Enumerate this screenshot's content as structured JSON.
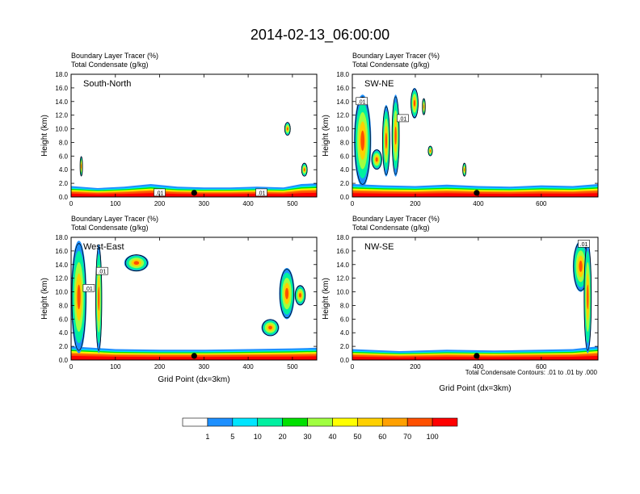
{
  "chart_data": {
    "type": "heatmap",
    "title": "2014-02-13_06:00:00",
    "fields": [
      "Boundary Layer Tracer   (%)",
      "Total Condensate   (g/kg)"
    ],
    "ylabel": "Height (km)",
    "xlabel": "Grid Point (dx=3km)",
    "ylim": [
      0,
      18
    ],
    "yticks": [
      "0.0",
      "2.0",
      "4.0",
      "6.0",
      "8.0",
      "10.0",
      "12.0",
      "14.0",
      "16.0",
      "18.0"
    ],
    "contour_note": "Total Condensate Contours: .01 to .01 by .000",
    "colorbar": {
      "levels": [
        "1",
        "5",
        "10",
        "20",
        "30",
        "40",
        "50",
        "60",
        "70",
        "100"
      ],
      "colors": [
        "#ffffff",
        "#1e90ff",
        "#00e5ff",
        "#00f0a0",
        "#00e000",
        "#a0ff40",
        "#ffff00",
        "#ffd000",
        "#ffa000",
        "#ff5000",
        "#ff0000"
      ]
    },
    "panels": [
      {
        "name": "South-North",
        "xlim": [
          0,
          555
        ],
        "xticks": [
          0,
          100,
          200,
          300,
          400,
          500
        ],
        "marker_x": 278,
        "contour_labels": [
          {
            "text": ".01",
            "x": 200,
            "y": 0.6
          },
          {
            "text": ".01",
            "x": 430,
            "y": 0.6
          }
        ],
        "bl_top": [
          [
            0,
            1.6
          ],
          [
            60,
            1.3
          ],
          [
            120,
            1.5
          ],
          [
            180,
            1.9
          ],
          [
            240,
            1.5
          ],
          [
            300,
            1.4
          ],
          [
            360,
            1.4
          ],
          [
            420,
            1.5
          ],
          [
            480,
            1.4
          ],
          [
            520,
            1.9
          ],
          [
            555,
            2.0
          ]
        ],
        "plumes": [
          {
            "x0": 482,
            "x1": 496,
            "y0": 9,
            "y1": 11
          },
          {
            "x0": 20,
            "x1": 26,
            "y0": 3,
            "y1": 6
          },
          {
            "x0": 520,
            "x1": 534,
            "y0": 3,
            "y1": 5
          }
        ]
      },
      {
        "name": "SW-NE",
        "xlim": [
          0,
          780
        ],
        "xticks": [
          0,
          200,
          400,
          600
        ],
        "marker_x": 395,
        "contour_labels": [
          {
            "text": ".01",
            "x": 30,
            "y": 14
          },
          {
            "text": ".01",
            "x": 160,
            "y": 11.5
          }
        ],
        "bl_top": [
          [
            0,
            1.9
          ],
          [
            100,
            1.7
          ],
          [
            200,
            1.6
          ],
          [
            300,
            1.8
          ],
          [
            400,
            1.6
          ],
          [
            500,
            1.5
          ],
          [
            600,
            1.7
          ],
          [
            700,
            1.6
          ],
          [
            780,
            1.9
          ]
        ],
        "plumes": [
          {
            "x0": 5,
            "x1": 60,
            "y0": 1.5,
            "y1": 15
          },
          {
            "x0": 95,
            "x1": 120,
            "y0": 3,
            "y1": 13.5
          },
          {
            "x0": 125,
            "x1": 150,
            "y0": 3,
            "y1": 15
          },
          {
            "x0": 185,
            "x1": 210,
            "y0": 11.5,
            "y1": 16
          },
          {
            "x0": 60,
            "x1": 95,
            "y0": 4,
            "y1": 7
          },
          {
            "x0": 222,
            "x1": 232,
            "y0": 12,
            "y1": 14.5
          },
          {
            "x0": 240,
            "x1": 255,
            "y0": 6,
            "y1": 7.5
          },
          {
            "x0": 350,
            "x1": 362,
            "y0": 3,
            "y1": 5
          }
        ]
      },
      {
        "name": "West-East",
        "xlim": [
          0,
          555
        ],
        "xticks": [
          0,
          100,
          200,
          300,
          400,
          500
        ],
        "marker_x": 278,
        "contour_labels": [
          {
            "text": ".01",
            "x": 70,
            "y": 13
          },
          {
            "text": ".01",
            "x": 40,
            "y": 10.5
          }
        ],
        "bl_top": [
          [
            0,
            2.0
          ],
          [
            100,
            1.6
          ],
          [
            200,
            1.5
          ],
          [
            300,
            1.5
          ],
          [
            400,
            1.6
          ],
          [
            500,
            1.7
          ],
          [
            555,
            1.8
          ]
        ],
        "plumes": [
          {
            "x0": 0,
            "x1": 35,
            "y0": 1,
            "y1": 17.5
          },
          {
            "x0": 55,
            "x1": 70,
            "y0": 1,
            "y1": 17
          },
          {
            "x0": 120,
            "x1": 175,
            "y0": 13,
            "y1": 15.5
          },
          {
            "x0": 470,
            "x1": 505,
            "y0": 6,
            "y1": 13.5
          },
          {
            "x0": 430,
            "x1": 470,
            "y0": 3.5,
            "y1": 6
          },
          {
            "x0": 505,
            "x1": 530,
            "y0": 8,
            "y1": 11
          }
        ]
      },
      {
        "name": "NW-SE",
        "xlim": [
          0,
          780
        ],
        "xticks": [
          0,
          200,
          400,
          600
        ],
        "marker_x": 395,
        "contour_labels": [
          {
            "text": ".01",
            "x": 735,
            "y": 17
          }
        ],
        "bl_top": [
          [
            0,
            1.6
          ],
          [
            150,
            1.3
          ],
          [
            300,
            1.5
          ],
          [
            450,
            1.4
          ],
          [
            600,
            1.5
          ],
          [
            700,
            1.6
          ],
          [
            780,
            2.0
          ]
        ],
        "plumes": [
          {
            "x0": 700,
            "x1": 750,
            "y0": 10,
            "y1": 17.5
          },
          {
            "x0": 735,
            "x1": 760,
            "y0": 1,
            "y1": 17.5
          }
        ]
      }
    ]
  }
}
